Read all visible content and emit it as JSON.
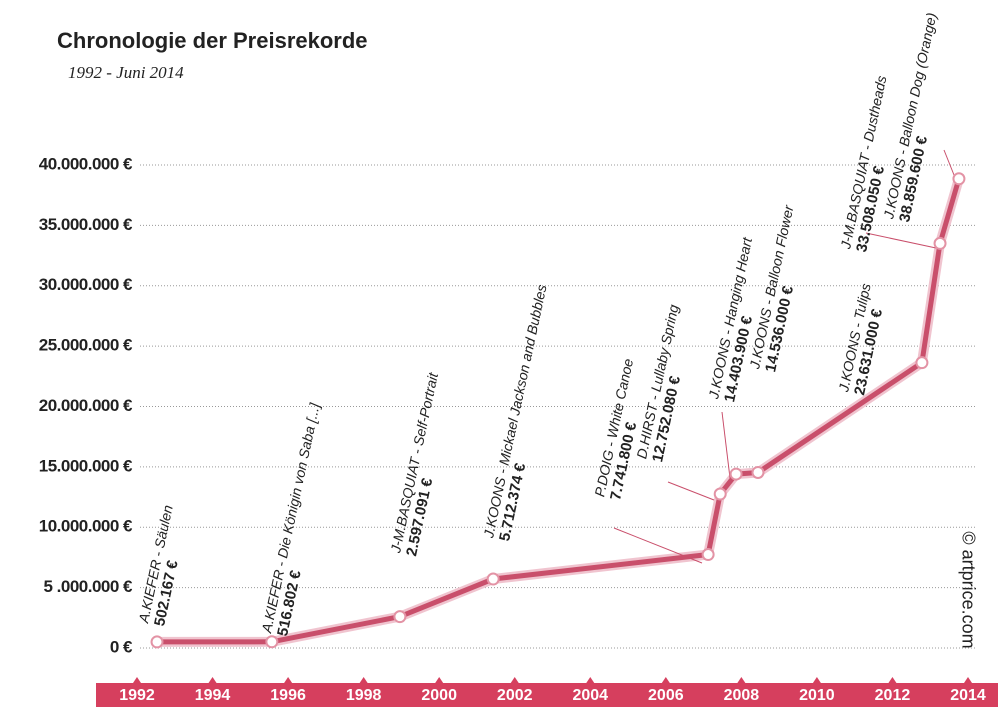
{
  "chart_data": {
    "type": "line",
    "title": "Chronologie der Preisrekorde",
    "subtitle": "1992 - Juni 2014",
    "copyright": "© artprice.com",
    "x": [
      1992.53,
      1995.57,
      1998.96,
      2001.43,
      2007.12,
      2007.44,
      2007.86,
      2008.44,
      2012.78,
      2013.26,
      2013.76
    ],
    "values": [
      502167,
      516802,
      2597091,
      5712374,
      7741800,
      12752080,
      14403900,
      14536000,
      23631000,
      33508050,
      38859600
    ],
    "value_labels": [
      "502.167 €",
      "516.802 €",
      "2.597.091 €",
      "5.712.374 €",
      "7.741.800 €",
      "12.752.080 €",
      "14.403.900 €",
      "14.536.000 €",
      "23.631.000 €",
      "33.508.050 €",
      "38.859.600 €"
    ],
    "point_labels": [
      "A.KIEFER - Säulen",
      "A.KIEFER - Die Königin von Saba [...]",
      "J-M.BASQUIAT - Self-Portrait",
      "J.KOONS - Mickael Jackson and Bubbles",
      "P.DOIG - White Canoe",
      "D.HIRST - Lullaby Spring",
      "J.KOONS - Hanging Heart",
      "J.KOONS - Balloon Flower",
      "J.KOONS - Tulips",
      "J-M.BASQUIAT - Dustheads",
      "J.KOONS - Balloon Dog (Orange)"
    ],
    "color": "#c94f6b",
    "xlim": [
      1992,
      2014
    ],
    "xticks": [
      1992,
      1994,
      1996,
      1998,
      2000,
      2002,
      2004,
      2006,
      2008,
      2010,
      2012,
      2014
    ],
    "ylim": [
      0,
      40000000
    ],
    "yticks": [
      {
        "value": 0,
        "label": "0 €"
      },
      {
        "value": 5000000,
        "label": "5 .000.000 €"
      },
      {
        "value": 10000000,
        "label": "10.000.000 €"
      },
      {
        "value": 15000000,
        "label": "15.000.000 €"
      },
      {
        "value": 20000000,
        "label": "20.000.000 €"
      },
      {
        "value": 25000000,
        "label": "25.000.000 €"
      },
      {
        "value": 30000000,
        "label": "30.000.000 €"
      },
      {
        "value": 35000000,
        "label": "35.000.000 €"
      },
      {
        "value": 40000000,
        "label": "40.000.000 €"
      }
    ],
    "grid": true
  }
}
